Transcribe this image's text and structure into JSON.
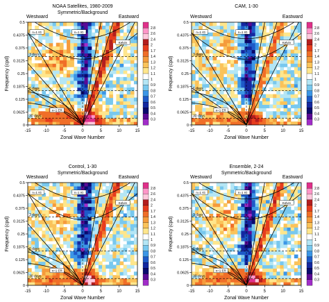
{
  "figure": {
    "colorbar_levels": [
      "2.8",
      "2.6",
      "2.4",
      "2",
      "1.7",
      "1.4",
      "1.3",
      "1.2",
      "1.1",
      "1",
      "0.9",
      "0.8",
      "0.7",
      "0.6",
      "0.5",
      "0.4",
      "0.3"
    ],
    "colorbar_colors": [
      "#e0318a",
      "#ff96c8",
      "#ffc8dc",
      "#b41e1e",
      "#e63c1e",
      "#f06e28",
      "#f59b3c",
      "#fac35a",
      "#ffe68c",
      "#ffffff",
      "#b4e6f5",
      "#78c8ee",
      "#3c96e6",
      "#1e5ac8",
      "#1428a0",
      "#0a0a6e",
      "#5a0a96",
      "#a02dc8"
    ],
    "line_color": "#000000"
  },
  "chart_data": [
    {
      "type": "heatmap",
      "title": "NOAA Satellites, 1980-2009",
      "subtitle": "Symmetric/Background",
      "corner_left": "Westward",
      "corner_right": "Eastward",
      "xlabel": "Zonal Wave Number",
      "ylabel": "Frequency (cpd)",
      "xlim": [
        -15,
        15
      ],
      "ylim": [
        0,
        0.5
      ],
      "xticks": [
        "-15",
        "-10",
        "-5",
        "0",
        "5",
        "10",
        "15"
      ],
      "yticks": [
        "0",
        "0.0625",
        "0.125",
        "0.1875",
        "0.25",
        "0.3125",
        "0.375",
        "0.4375",
        "0.5"
      ],
      "period_lines": [
        {
          "label": "30 days",
          "freq": 0.0333
        },
        {
          "label": "6 days",
          "freq": 0.1667
        },
        {
          "label": "3 days",
          "freq": 0.3333
        }
      ],
      "dispersion_labels": [
        "n=1 ER",
        "n=1 IG",
        "n=1 IG",
        "Kelvin"
      ],
      "kelvin_strength": 1.0,
      "mjo_strength": 1.0,
      "er_strength": 0.9
    },
    {
      "type": "heatmap",
      "title": "CAM, 1-30",
      "subtitle": "",
      "corner_left": "Westward",
      "corner_right": "Eastward",
      "xlabel": "Zonal Wave Number",
      "ylabel": "Frequency (cpd)",
      "xlim": [
        -15,
        15
      ],
      "ylim": [
        0,
        0.5
      ],
      "xticks": [
        "-15",
        "-10",
        "-5",
        "0",
        "5",
        "10",
        "15"
      ],
      "yticks": [
        "0",
        "0.0625",
        "0.125",
        "0.1875",
        "0.25",
        "0.3125",
        "0.375",
        "0.4375",
        "0.5"
      ],
      "period_lines": [
        {
          "label": "30 days",
          "freq": 0.0333
        },
        {
          "label": "6 days",
          "freq": 0.1667
        },
        {
          "label": "3 days",
          "freq": 0.3333
        }
      ],
      "dispersion_labels": [
        "n=1 ER",
        "n=1 IG",
        "n=1 IG",
        "Kelvin"
      ],
      "kelvin_strength": 0.55,
      "mjo_strength": 0.5,
      "er_strength": 0.6
    },
    {
      "type": "heatmap",
      "title": "Control, 1-30",
      "subtitle": "Symmetric/Background",
      "corner_left": "Westward",
      "corner_right": "Eastward",
      "xlabel": "Zonal Wave Number",
      "ylabel": "Frequency (cpd)",
      "xlim": [
        -15,
        15
      ],
      "ylim": [
        0,
        0.5
      ],
      "xticks": [
        "-15",
        "-10",
        "-5",
        "0",
        "5",
        "10",
        "15"
      ],
      "yticks": [
        "0",
        "0.0625",
        "0.125",
        "0.1875",
        "0.25",
        "0.3125",
        "0.375",
        "0.4375",
        "0.5"
      ],
      "period_lines": [
        {
          "label": "30 days",
          "freq": 0.0333
        },
        {
          "label": "6 days",
          "freq": 0.1667
        },
        {
          "label": "3 days",
          "freq": 0.3333
        }
      ],
      "dispersion_labels": [
        "n=1 ER",
        "n=1 IG",
        "n=1 IG",
        "Kelvin"
      ],
      "kelvin_strength": 0.75,
      "mjo_strength": 0.8,
      "er_strength": 0.7
    },
    {
      "type": "heatmap",
      "title": "Ensemble, 2-24",
      "subtitle": "Symmetric/Background",
      "corner_left": "Westward",
      "corner_right": "Eastward",
      "xlabel": "Zonal Wave Number",
      "ylabel": "Frequency (cpd)",
      "xlim": [
        -15,
        15
      ],
      "ylim": [
        0,
        0.5
      ],
      "xticks": [
        "-15",
        "-10",
        "-5",
        "0",
        "5",
        "10",
        "15"
      ],
      "yticks": [
        "0",
        "0.0625",
        "0.125",
        "0.1875",
        "0.25",
        "0.3125",
        "0.375",
        "0.4375",
        "0.5"
      ],
      "period_lines": [
        {
          "label": "30 days",
          "freq": 0.0333
        },
        {
          "label": "6 days",
          "freq": 0.1667
        },
        {
          "label": "3 days",
          "freq": 0.3333
        }
      ],
      "dispersion_labels": [
        "n=1 ER",
        "n=1 IG",
        "n=1 IG",
        "Kelvin"
      ],
      "kelvin_strength": 0.8,
      "mjo_strength": 0.85,
      "er_strength": 0.75
    }
  ]
}
